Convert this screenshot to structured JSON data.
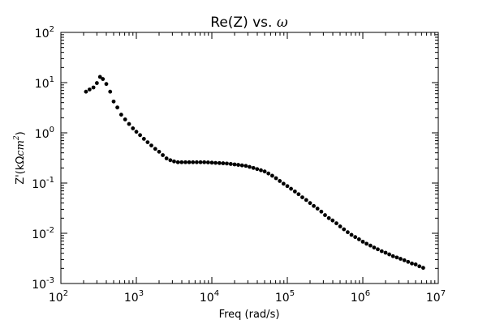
{
  "chart_data": {
    "type": "scatter",
    "title": "Re(Z) vs. ω",
    "title_parts": {
      "text": "Re(Z) vs. ",
      "symbol": "ω"
    },
    "xlabel": "Freq (rad/s)",
    "ylabel": "Z'(kΩcm²)",
    "ylabel_parts": {
      "prefix": "Z'(",
      "unit_k": "k",
      "unit_omega": "Ω",
      "unit_cm": "cm",
      "unit_exp": "2",
      "suffix": ")"
    },
    "xscale": "log",
    "yscale": "log",
    "xlim": [
      100,
      10000000
    ],
    "ylim": [
      0.001,
      100
    ],
    "xticks": [
      {
        "base": "10",
        "exp": "2"
      },
      {
        "base": "10",
        "exp": "3"
      },
      {
        "base": "10",
        "exp": "4"
      },
      {
        "base": "10",
        "exp": "5"
      },
      {
        "base": "10",
        "exp": "6"
      },
      {
        "base": "10",
        "exp": "7"
      }
    ],
    "yticks": [
      {
        "base": "10",
        "exp": "-3"
      },
      {
        "base": "10",
        "exp": "-2"
      },
      {
        "base": "10",
        "exp": "-1"
      },
      {
        "base": "10",
        "exp": "0"
      },
      {
        "base": "10",
        "exp": "1"
      },
      {
        "base": "10",
        "exp": "2"
      }
    ],
    "grid": false,
    "marker_color": "#000000",
    "points": [
      [
        215,
        6.6
      ],
      [
        240,
        7.3
      ],
      [
        270,
        8.0
      ],
      [
        300,
        9.8
      ],
      [
        330,
        13.0
      ],
      [
        360,
        11.8
      ],
      [
        400,
        9.4
      ],
      [
        450,
        6.6
      ],
      [
        500,
        4.2
      ],
      [
        560,
        3.2
      ],
      [
        630,
        2.3
      ],
      [
        710,
        1.85
      ],
      [
        800,
        1.5
      ],
      [
        900,
        1.23
      ],
      [
        1000,
        1.05
      ],
      [
        1120,
        0.9
      ],
      [
        1260,
        0.76
      ],
      [
        1410,
        0.65
      ],
      [
        1580,
        0.56
      ],
      [
        1780,
        0.48
      ],
      [
        2000,
        0.42
      ],
      [
        2240,
        0.36
      ],
      [
        2510,
        0.31
      ],
      [
        2820,
        0.285
      ],
      [
        3160,
        0.27
      ],
      [
        3550,
        0.26
      ],
      [
        3980,
        0.26
      ],
      [
        4470,
        0.26
      ],
      [
        5010,
        0.26
      ],
      [
        5620,
        0.26
      ],
      [
        6310,
        0.26
      ],
      [
        7080,
        0.26
      ],
      [
        7940,
        0.26
      ],
      [
        8910,
        0.258
      ],
      [
        10000,
        0.255
      ],
      [
        11200,
        0.252
      ],
      [
        12600,
        0.25
      ],
      [
        14100,
        0.248
      ],
      [
        15800,
        0.245
      ],
      [
        17800,
        0.24
      ],
      [
        20000,
        0.235
      ],
      [
        22400,
        0.23
      ],
      [
        25100,
        0.225
      ],
      [
        28200,
        0.22
      ],
      [
        31600,
        0.21
      ],
      [
        35500,
        0.2
      ],
      [
        39800,
        0.19
      ],
      [
        44700,
        0.18
      ],
      [
        50100,
        0.17
      ],
      [
        56200,
        0.155
      ],
      [
        63100,
        0.14
      ],
      [
        70800,
        0.125
      ],
      [
        79400,
        0.11
      ],
      [
        89100,
        0.097
      ],
      [
        100000,
        0.087
      ],
      [
        112000,
        0.077
      ],
      [
        126000,
        0.068
      ],
      [
        141000,
        0.06
      ],
      [
        158000,
        0.052
      ],
      [
        178000,
        0.046
      ],
      [
        200000,
        0.04
      ],
      [
        224000,
        0.035
      ],
      [
        251000,
        0.031
      ],
      [
        282000,
        0.027
      ],
      [
        316000,
        0.023
      ],
      [
        355000,
        0.02
      ],
      [
        398000,
        0.018
      ],
      [
        447000,
        0.0158
      ],
      [
        501000,
        0.0137
      ],
      [
        562000,
        0.012
      ],
      [
        631000,
        0.0105
      ],
      [
        708000,
        0.0093
      ],
      [
        794000,
        0.0084
      ],
      [
        891000,
        0.0076
      ],
      [
        1000000,
        0.0068
      ],
      [
        1120000,
        0.0062
      ],
      [
        1260000,
        0.0057
      ],
      [
        1410000,
        0.0052
      ],
      [
        1580000,
        0.0048
      ],
      [
        1780000,
        0.0044
      ],
      [
        2000000,
        0.0041
      ],
      [
        2240000,
        0.0038
      ],
      [
        2510000,
        0.0035
      ],
      [
        2820000,
        0.0033
      ],
      [
        3160000,
        0.0031
      ],
      [
        3550000,
        0.0029
      ],
      [
        3980000,
        0.0027
      ],
      [
        4470000,
        0.0025
      ],
      [
        5010000,
        0.0024
      ],
      [
        5620000,
        0.0022
      ],
      [
        6310000,
        0.00205
      ]
    ]
  }
}
